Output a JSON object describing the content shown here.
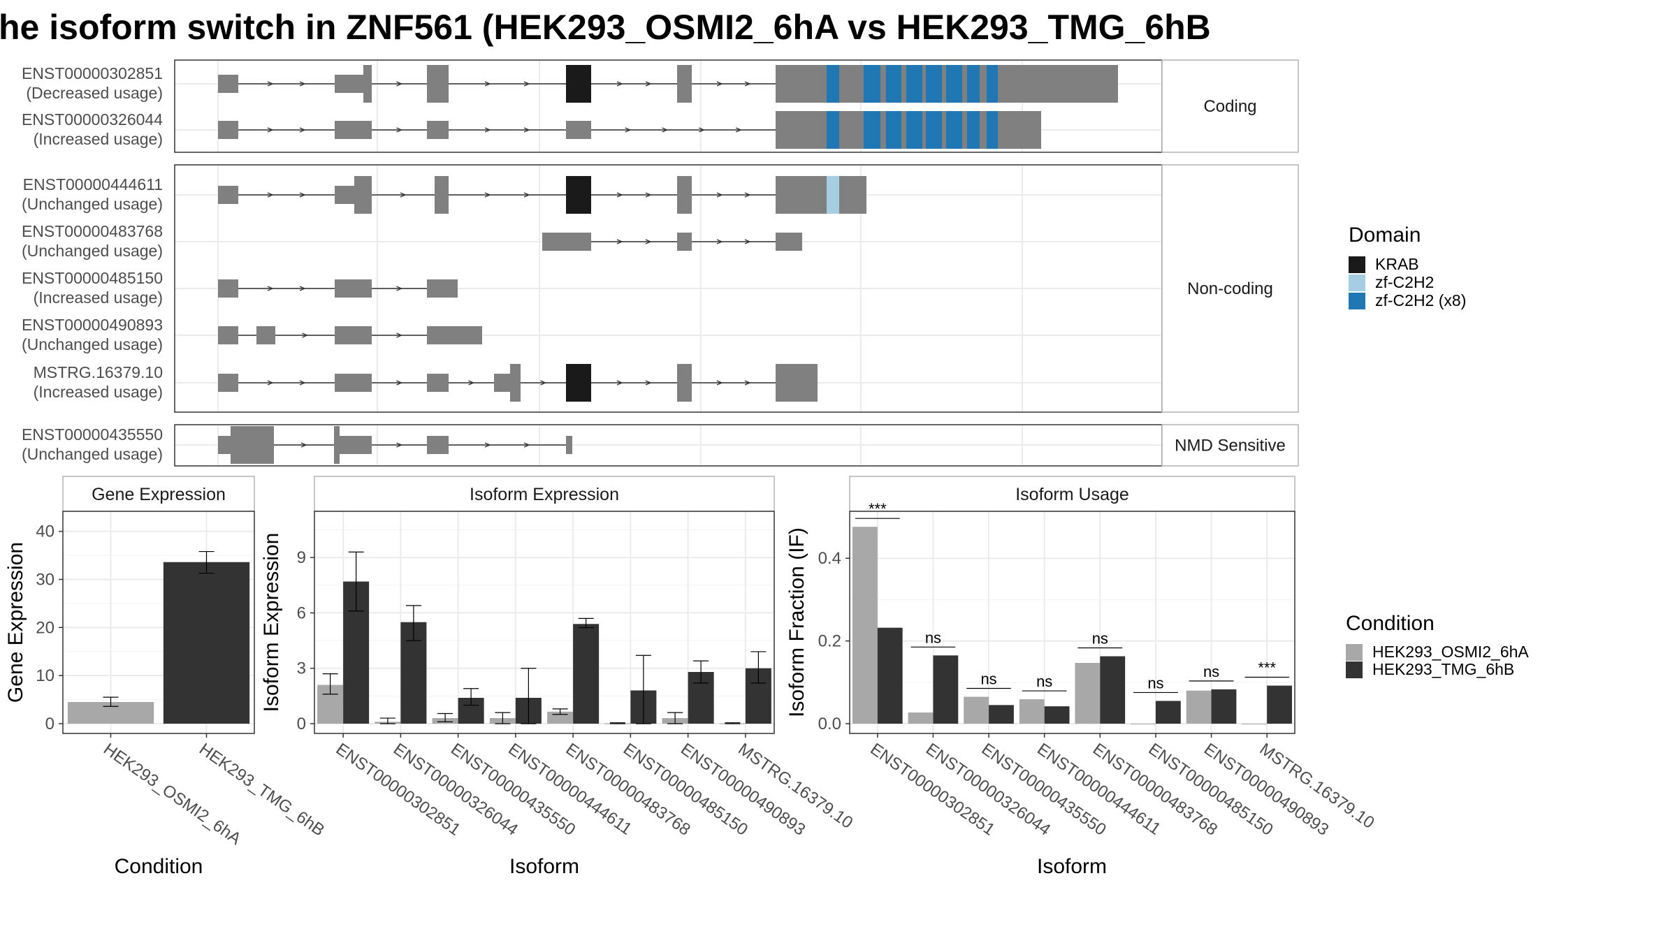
{
  "title": "he isoform switch in ZNF561 (HEK293_OSMI2_6hA vs HEK293_TMG_6hB",
  "colors": {
    "exon": "#808080",
    "krab": "#1a1a1a",
    "zf_single": "#a6cee3",
    "zf_multi": "#1f78b4",
    "cond_a": "#a8a8a8",
    "cond_b": "#333333",
    "grid": "#ebebeb",
    "strip_border": "#b3b3b3",
    "panel_border": "#333333"
  },
  "transcript_panels": [
    {
      "label": "Coding",
      "transcripts": [
        {
          "id": "ENST00000302851",
          "usage": "(Decreased usage)"
        },
        {
          "id": "ENST00000326044",
          "usage": "(Increased usage)"
        }
      ]
    },
    {
      "label": "Non-coding",
      "transcripts": [
        {
          "id": "ENST00000444611",
          "usage": "(Unchanged usage)"
        },
        {
          "id": "ENST00000483768",
          "usage": "(Unchanged usage)"
        },
        {
          "id": "ENST00000485150",
          "usage": "(Increased usage)"
        },
        {
          "id": "ENST00000490893",
          "usage": "(Unchanged usage)"
        },
        {
          "id": "MSTRG.16379.10",
          "usage": "(Increased usage)"
        }
      ]
    },
    {
      "label": "NMD Sensitive",
      "transcripts": [
        {
          "id": "ENST00000435550",
          "usage": "(Unchanged usage)"
        }
      ]
    }
  ],
  "domain_legend": {
    "title": "Domain",
    "items": [
      {
        "label": "KRAB",
        "color": "#1a1a1a"
      },
      {
        "label": "zf-C2H2",
        "color": "#a6cee3"
      },
      {
        "label": "zf-C2H2 (x8)",
        "color": "#1f78b4"
      }
    ]
  },
  "condition_legend": {
    "title": "Condition",
    "items": [
      {
        "label": "HEK293_OSMI2_6hA",
        "color": "#a8a8a8"
      },
      {
        "label": "HEK293_TMG_6hB",
        "color": "#333333"
      }
    ]
  },
  "chart_data": [
    {
      "type": "bar",
      "title": "Gene Expression",
      "xlabel": "Condition",
      "ylabel": "Gene Expression",
      "ylim": [
        0,
        43
      ],
      "yticks": [
        0,
        10,
        20,
        30,
        40
      ],
      "categories": [
        "HEK293_OSMI2_6hA",
        "HEK293_TMG_6hB"
      ],
      "series": [
        {
          "name": "HEK293_OSMI2_6hA",
          "values": [
            4.5,
            null
          ],
          "err_low": [
            3.6,
            null
          ],
          "err_high": [
            5.5,
            null
          ]
        },
        {
          "name": "HEK293_TMG_6hB",
          "values": [
            null,
            33.6
          ],
          "err_low": [
            null,
            31.3
          ],
          "err_high": [
            null,
            35.8
          ]
        }
      ]
    },
    {
      "type": "bar",
      "title": "Isoform Expression",
      "xlabel": "Isoform",
      "ylabel": "Isoform Expression",
      "ylim": [
        0,
        11.2
      ],
      "yticks": [
        0,
        3,
        6,
        9
      ],
      "categories": [
        "ENST00000302851",
        "ENST00000326044",
        "ENST00000435550",
        "ENST00000444611",
        "ENST00000483768",
        "ENST00000485150",
        "ENST00000490893",
        "MSTRG.16379.10"
      ],
      "series": [
        {
          "name": "HEK293_OSMI2_6hA",
          "values": [
            2.1,
            0.1,
            0.3,
            0.3,
            0.65,
            0.02,
            0.3,
            0.02
          ],
          "err_low": [
            1.6,
            0.0,
            0.1,
            0.0,
            0.5,
            0.0,
            0.0,
            0.0
          ],
          "err_high": [
            2.7,
            0.3,
            0.55,
            0.6,
            0.8,
            0.05,
            0.6,
            0.05
          ]
        },
        {
          "name": "HEK293_TMG_6hB",
          "values": [
            7.7,
            5.5,
            1.4,
            1.4,
            5.4,
            1.8,
            2.8,
            3.0
          ],
          "err_low": [
            6.1,
            4.5,
            1.0,
            0.0,
            5.2,
            0.0,
            2.2,
            2.2
          ],
          "err_high": [
            9.3,
            6.4,
            1.9,
            3.0,
            5.7,
            3.7,
            3.4,
            3.9
          ]
        }
      ]
    },
    {
      "type": "bar",
      "title": "Isoform Usage",
      "xlabel": "Isoform",
      "ylabel": "Isoform Fraction (IF)",
      "ylim": [
        0,
        0.5
      ],
      "yticks": [
        0.0,
        0.2,
        0.4
      ],
      "ytick_labels": [
        "0.0",
        "0.2",
        "0.4"
      ],
      "categories": [
        "ENST00000302851",
        "ENST00000326044",
        "ENST00000435550",
        "ENST00000444611",
        "ENST00000483768",
        "ENST00000485150",
        "ENST00000490893",
        "MSTRG.16379.10"
      ],
      "series": [
        {
          "name": "HEK293_OSMI2_6hA",
          "values": [
            0.476,
            0.027,
            0.065,
            0.059,
            0.147,
            0.0,
            0.08,
            0.0
          ]
        },
        {
          "name": "HEK293_TMG_6hB",
          "values": [
            0.232,
            0.165,
            0.045,
            0.042,
            0.163,
            0.055,
            0.083,
            0.092
          ]
        }
      ],
      "significance": [
        "***",
        "ns",
        "ns",
        "ns",
        "ns",
        "ns",
        "ns",
        "***"
      ]
    }
  ]
}
